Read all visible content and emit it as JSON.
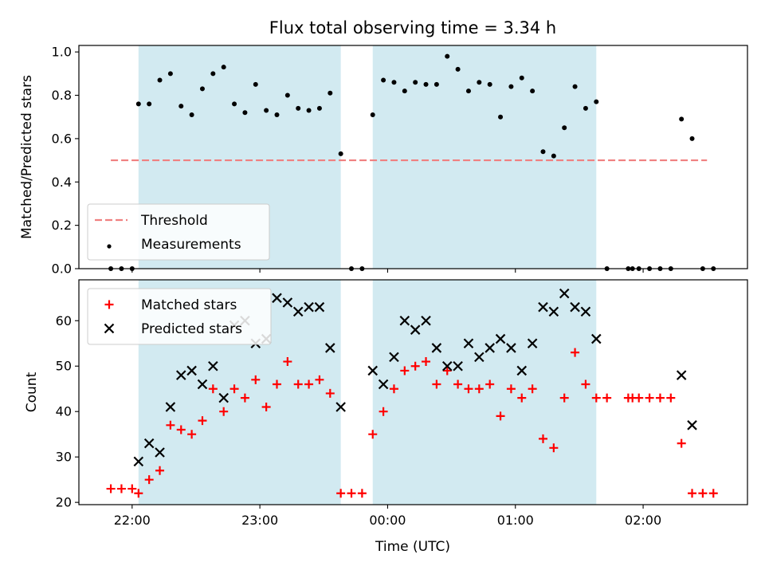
{
  "chart_data": {
    "type": "scatter",
    "title": "Flux total observing time = 3.34 h",
    "xlabel": "Time (UTC)",
    "x_ticks": [
      "22:00",
      "23:00",
      "00:00",
      "01:00",
      "02:00"
    ],
    "x_tick_times": [
      "22:00",
      "23:00",
      "00:00",
      "01:00",
      "02:00"
    ],
    "xlim": [
      "21:35",
      "02:49"
    ],
    "shaded_intervals": [
      [
        "22:03",
        "23:38"
      ],
      [
        "23:53",
        "01:38"
      ]
    ],
    "shade_color": "#add8e6",
    "panels": [
      {
        "ylabel": "Matched/Predicted stars",
        "ylim": [
          0,
          1.03
        ],
        "y_ticks": [
          "0.0",
          "0.2",
          "0.4",
          "0.6",
          "0.8",
          "1.0"
        ],
        "y_tick_values": [
          0,
          0.2,
          0.4,
          0.6,
          0.8,
          1.0
        ],
        "legend_position": "lower-left",
        "threshold": {
          "name": "Threshold",
          "value": 0.5,
          "x_range": [
            "21:50",
            "02:30"
          ],
          "color": "#f08080"
        },
        "series": [
          {
            "name": "Measurements",
            "marker": "dot",
            "color": "#000000",
            "points": [
              [
                "21:50",
                0
              ],
              [
                "21:55",
                0
              ],
              [
                "22:00",
                0
              ],
              [
                "22:03",
                0.76
              ],
              [
                "22:08",
                0.76
              ],
              [
                "22:13",
                0.87
              ],
              [
                "22:18",
                0.9
              ],
              [
                "22:23",
                0.75
              ],
              [
                "22:28",
                0.71
              ],
              [
                "22:33",
                0.83
              ],
              [
                "22:38",
                0.9
              ],
              [
                "22:43",
                0.93
              ],
              [
                "22:48",
                0.76
              ],
              [
                "22:53",
                0.72
              ],
              [
                "22:58",
                0.85
              ],
              [
                "23:03",
                0.73
              ],
              [
                "23:08",
                0.71
              ],
              [
                "23:13",
                0.8
              ],
              [
                "23:18",
                0.74
              ],
              [
                "23:23",
                0.73
              ],
              [
                "23:28",
                0.74
              ],
              [
                "23:33",
                0.81
              ],
              [
                "23:38",
                0.53
              ],
              [
                "23:43",
                0
              ],
              [
                "23:48",
                0
              ],
              [
                "23:53",
                0.71
              ],
              [
                "23:58",
                0.87
              ],
              [
                "00:03",
                0.86
              ],
              [
                "00:08",
                0.82
              ],
              [
                "00:13",
                0.86
              ],
              [
                "00:18",
                0.85
              ],
              [
                "00:23",
                0.85
              ],
              [
                "00:28",
                0.98
              ],
              [
                "00:33",
                0.92
              ],
              [
                "00:38",
                0.82
              ],
              [
                "00:43",
                0.86
              ],
              [
                "00:48",
                0.85
              ],
              [
                "00:53",
                0.7
              ],
              [
                "00:58",
                0.84
              ],
              [
                "01:03",
                0.88
              ],
              [
                "01:08",
                0.82
              ],
              [
                "01:13",
                0.54
              ],
              [
                "01:18",
                0.52
              ],
              [
                "01:23",
                0.65
              ],
              [
                "01:28",
                0.84
              ],
              [
                "01:33",
                0.74
              ],
              [
                "01:38",
                0.77
              ],
              [
                "01:43",
                0
              ],
              [
                "01:53",
                0
              ],
              [
                "01:55",
                0
              ],
              [
                "01:58",
                0
              ],
              [
                "02:03",
                0
              ],
              [
                "02:08",
                0
              ],
              [
                "02:13",
                0
              ],
              [
                "02:18",
                0.69
              ],
              [
                "02:23",
                0.6
              ],
              [
                "02:28",
                0
              ],
              [
                "02:33",
                0
              ]
            ]
          }
        ]
      },
      {
        "ylabel": "Count",
        "ylim": [
          19.5,
          69
        ],
        "y_ticks": [
          "20",
          "30",
          "40",
          "50",
          "60"
        ],
        "y_tick_values": [
          20,
          30,
          40,
          50,
          60
        ],
        "legend_position": "upper-left",
        "series": [
          {
            "name": "Matched stars",
            "marker": "plus",
            "color": "#ff0000",
            "points": [
              [
                "21:50",
                23
              ],
              [
                "21:55",
                23
              ],
              [
                "22:00",
                23
              ],
              [
                "22:03",
                22
              ],
              [
                "22:08",
                25
              ],
              [
                "22:13",
                27
              ],
              [
                "22:18",
                37
              ],
              [
                "22:23",
                36
              ],
              [
                "22:28",
                35
              ],
              [
                "22:33",
                38
              ],
              [
                "22:38",
                45
              ],
              [
                "22:43",
                40
              ],
              [
                "22:48",
                45
              ],
              [
                "22:53",
                43
              ],
              [
                "22:58",
                47
              ],
              [
                "23:03",
                41
              ],
              [
                "23:08",
                46
              ],
              [
                "23:13",
                51
              ],
              [
                "23:18",
                46
              ],
              [
                "23:23",
                46
              ],
              [
                "23:28",
                47
              ],
              [
                "23:33",
                44
              ],
              [
                "23:38",
                22
              ],
              [
                "23:43",
                22
              ],
              [
                "23:48",
                22
              ],
              [
                "23:53",
                35
              ],
              [
                "23:58",
                40
              ],
              [
                "00:03",
                45
              ],
              [
                "00:08",
                49
              ],
              [
                "00:13",
                50
              ],
              [
                "00:18",
                51
              ],
              [
                "00:23",
                46
              ],
              [
                "00:28",
                49
              ],
              [
                "00:33",
                46
              ],
              [
                "00:38",
                45
              ],
              [
                "00:43",
                45
              ],
              [
                "00:48",
                46
              ],
              [
                "00:53",
                39
              ],
              [
                "00:58",
                45
              ],
              [
                "01:03",
                43
              ],
              [
                "01:08",
                45
              ],
              [
                "01:13",
                34
              ],
              [
                "01:18",
                32
              ],
              [
                "01:23",
                43
              ],
              [
                "01:28",
                53
              ],
              [
                "01:33",
                46
              ],
              [
                "01:38",
                43
              ],
              [
                "01:43",
                43
              ],
              [
                "01:53",
                43
              ],
              [
                "01:55",
                43
              ],
              [
                "01:58",
                43
              ],
              [
                "02:03",
                43
              ],
              [
                "02:08",
                43
              ],
              [
                "02:13",
                43
              ],
              [
                "02:18",
                33
              ],
              [
                "02:23",
                22
              ],
              [
                "02:28",
                22
              ],
              [
                "02:33",
                22
              ]
            ]
          },
          {
            "name": "Predicted stars",
            "marker": "x",
            "color": "#000000",
            "points": [
              [
                "22:03",
                29
              ],
              [
                "22:08",
                33
              ],
              [
                "22:13",
                31
              ],
              [
                "22:18",
                41
              ],
              [
                "22:23",
                48
              ],
              [
                "22:28",
                49
              ],
              [
                "22:33",
                46
              ],
              [
                "22:38",
                50
              ],
              [
                "22:43",
                43
              ],
              [
                "22:48",
                59
              ],
              [
                "22:53",
                60
              ],
              [
                "22:58",
                55
              ],
              [
                "23:03",
                56
              ],
              [
                "23:08",
                65
              ],
              [
                "23:13",
                64
              ],
              [
                "23:18",
                62
              ],
              [
                "23:23",
                63
              ],
              [
                "23:28",
                63
              ],
              [
                "23:33",
                54
              ],
              [
                "23:38",
                41
              ],
              [
                "23:53",
                49
              ],
              [
                "23:58",
                46
              ],
              [
                "00:03",
                52
              ],
              [
                "00:08",
                60
              ],
              [
                "00:13",
                58
              ],
              [
                "00:18",
                60
              ],
              [
                "00:23",
                54
              ],
              [
                "00:28",
                50
              ],
              [
                "00:33",
                50
              ],
              [
                "00:38",
                55
              ],
              [
                "00:43",
                52
              ],
              [
                "00:48",
                54
              ],
              [
                "00:53",
                56
              ],
              [
                "00:58",
                54
              ],
              [
                "01:03",
                49
              ],
              [
                "01:08",
                55
              ],
              [
                "01:13",
                63
              ],
              [
                "01:18",
                62
              ],
              [
                "01:23",
                66
              ],
              [
                "01:28",
                63
              ],
              [
                "01:33",
                62
              ],
              [
                "01:38",
                56
              ],
              [
                "02:18",
                48
              ],
              [
                "02:23",
                37
              ]
            ]
          }
        ]
      }
    ]
  }
}
